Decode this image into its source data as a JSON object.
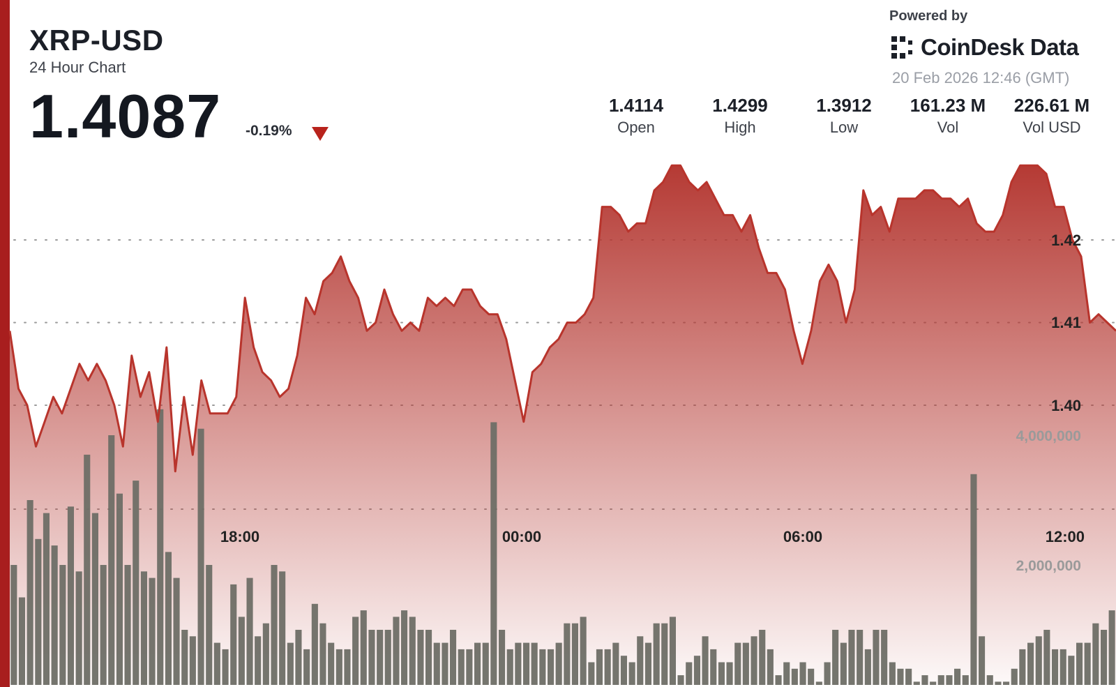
{
  "header": {
    "pair": "XRP-USD",
    "subtitle": "24 Hour Chart",
    "price": "1.4087",
    "change": "-0.19%"
  },
  "branding": {
    "powered_by": "Powered by",
    "brand_name": "CoinDesk Data",
    "timestamp": "20 Feb 2026 12:46 (GMT)"
  },
  "stats": [
    {
      "value": "1.4114",
      "label": "Open"
    },
    {
      "value": "1.4299",
      "label": "High"
    },
    {
      "value": "1.3912",
      "label": "Low"
    },
    {
      "value": "161.23 M",
      "label": "Vol"
    },
    {
      "value": "226.61 M",
      "label": "Vol USD"
    }
  ],
  "colors": {
    "accent": "#a81e1e",
    "line": "#b8342c",
    "area_top": "#b53a34",
    "volume_bar": "#6e6e66",
    "down": "#b8231c"
  },
  "chart_data": [
    {
      "type": "area",
      "series": [
        {
          "values": [
            1.409,
            1.402,
            1.4,
            1.395,
            1.398,
            1.401,
            1.399,
            1.402,
            1.405,
            1.403,
            1.405,
            1.403,
            1.4,
            1.395,
            1.406,
            1.401,
            1.404,
            1.398,
            1.407,
            1.392,
            1.401,
            1.394,
            1.403,
            1.399,
            1.399,
            1.399,
            1.401,
            1.413,
            1.407,
            1.404,
            1.403,
            1.401,
            1.402,
            1.406,
            1.413,
            1.411,
            1.415,
            1.416,
            1.418,
            1.415,
            1.413,
            1.409,
            1.41,
            1.414,
            1.411,
            1.409,
            1.41,
            1.409,
            1.413,
            1.412,
            1.413,
            1.412,
            1.414,
            1.414,
            1.412,
            1.411,
            1.411,
            1.408,
            1.403,
            1.398,
            1.404,
            1.405,
            1.407,
            1.408,
            1.41,
            1.41,
            1.411,
            1.413,
            1.424,
            1.424,
            1.423,
            1.421,
            1.422,
            1.422,
            1.426,
            1.427,
            1.429,
            1.429,
            1.427,
            1.426,
            1.427,
            1.425,
            1.423,
            1.423,
            1.421,
            1.423,
            1.419,
            1.416,
            1.416,
            1.414,
            1.409,
            1.405,
            1.409,
            1.415,
            1.417,
            1.415,
            1.41,
            1.414,
            1.426,
            1.423,
            1.424,
            1.421,
            1.425,
            1.425,
            1.425,
            1.426,
            1.426,
            1.425,
            1.425,
            1.424,
            1.425,
            1.422,
            1.421,
            1.421,
            1.423,
            1.427,
            1.429,
            1.429,
            1.429,
            1.428,
            1.424,
            1.424,
            1.42,
            1.418,
            1.41,
            1.411,
            1.41,
            1.409
          ]
        }
      ],
      "x_tick_labels": [
        "18:00",
        "00:00",
        "06:00",
        "12:00"
      ],
      "y_tick_labels": [
        "1.42",
        "1.41",
        "1.40"
      ],
      "ylim": [
        1.39,
        1.43
      ],
      "grid": true
    },
    {
      "type": "bar",
      "series": [
        {
          "values": [
            2000000,
            1500000,
            3000000,
            2400000,
            2800000,
            2300000,
            2000000,
            2900000,
            1900000,
            3700000,
            2800000,
            2000000,
            4000000,
            3100000,
            2000000,
            3300000,
            1900000,
            1800000,
            4400000,
            2200000,
            1800000,
            1000000,
            900000,
            4100000,
            2000000,
            800000,
            700000,
            1700000,
            1200000,
            1800000,
            900000,
            1100000,
            2000000,
            1900000,
            800000,
            1000000,
            700000,
            1400000,
            1100000,
            800000,
            700000,
            700000,
            1200000,
            1300000,
            1000000,
            1000000,
            1000000,
            1200000,
            1300000,
            1200000,
            1000000,
            1000000,
            800000,
            800000,
            1000000,
            700000,
            700000,
            800000,
            800000,
            4200000,
            1000000,
            700000,
            800000,
            800000,
            800000,
            700000,
            700000,
            800000,
            1100000,
            1100000,
            1200000,
            500000,
            700000,
            700000,
            800000,
            600000,
            500000,
            900000,
            800000,
            1100000,
            1100000,
            1200000,
            300000,
            500000,
            600000,
            900000,
            700000,
            500000,
            500000,
            800000,
            800000,
            900000,
            1000000,
            700000,
            300000,
            500000,
            400000,
            500000,
            400000,
            200000,
            500000,
            1000000,
            800000,
            1000000,
            1000000,
            700000,
            1000000,
            1000000,
            500000,
            400000,
            400000,
            200000,
            300000,
            200000,
            300000,
            300000,
            400000,
            300000,
            3400000,
            900000,
            300000,
            200000,
            200000,
            400000,
            700000,
            800000,
            900000,
            1000000,
            700000,
            700000,
            600000,
            800000,
            800000,
            1100000,
            1000000,
            1300000
          ]
        }
      ],
      "y_tick_labels": [
        "4,000,000",
        "2,000,000"
      ],
      "ylim": [
        0,
        4600000
      ]
    }
  ]
}
